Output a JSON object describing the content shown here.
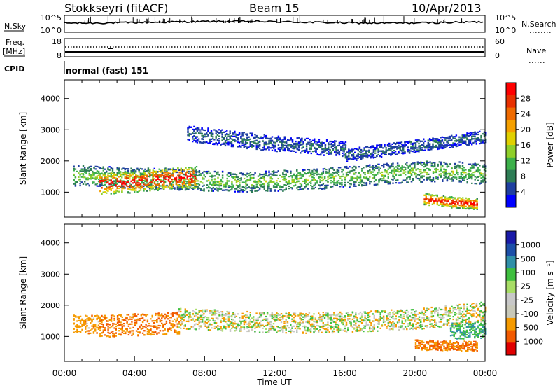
{
  "header": {
    "station": "Stokkseyri (fitACF)",
    "beam": "Beam 15",
    "date": "10/Apr/2013"
  },
  "strips": {
    "nsky_label": "N.Sky",
    "nsearch_label": "N.Search",
    "noise_ticks_left": [
      "10^5",
      "10^0"
    ],
    "noise_ticks_right": [
      "10^5",
      "10^0"
    ],
    "freq_label_1": "Freq.",
    "freq_label_2": "[MHz]",
    "freq_ticks": [
      "18",
      "8"
    ],
    "nave_label": "Nave",
    "nave_ticks": [
      "60",
      "0"
    ],
    "cpid_label": "CPID",
    "cpid_value": "normal (fast) 151"
  },
  "colors": {
    "power_scale": [
      "#0000ff",
      "#1f3fa0",
      "#2e7d55",
      "#3cb04a",
      "#8fcf2a",
      "#e0d000",
      "#f5a000",
      "#ef6a00",
      "#e83000",
      "#ff0000"
    ],
    "velocity_scale": [
      "#e00000",
      "#f25a00",
      "#f59a00",
      "#c8c8b8",
      "#c8c8c8",
      "#a8dd66",
      "#3fbf3f",
      "#2f8fa8",
      "#1c4fa8",
      "#1a1aa8"
    ]
  },
  "chart_data": [
    {
      "type": "heatmap",
      "name": "power",
      "ylabel": "Slant Range [km]",
      "xlabel": "Time UT",
      "x_ticks": [
        "00:00",
        "04:00",
        "08:00",
        "12:00",
        "16:00",
        "20:00",
        "00:00"
      ],
      "xlim_hours": [
        0,
        24
      ],
      "y_ticks": [
        1000,
        2000,
        3000,
        4000
      ],
      "ylim_km": [
        200,
        4600
      ],
      "colorbar_label": "Power [dB]",
      "colorbar_ticks": [
        28,
        24,
        20,
        16,
        12,
        8,
        4
      ],
      "colorbar_range_db": [
        0,
        32
      ],
      "echo_bands": [
        {
          "t_start_h": 0.5,
          "t_end_h": 24,
          "center_km": [
            1550,
            1500,
            1450,
            1400,
            1350,
            1380,
            1450,
            1550,
            1650,
            1700,
            1600
          ],
          "half_width_km": 330,
          "power_db": 12
        },
        {
          "t_start_h": 2.0,
          "t_end_h": 7.5,
          "center_km": [
            1300,
            1350,
            1450,
            1500
          ],
          "half_width_km": 350,
          "power_db": 28
        },
        {
          "t_start_h": 20.5,
          "t_end_h": 23.5,
          "center_km": [
            800,
            700,
            650
          ],
          "half_width_km": 180,
          "power_db": 26
        },
        {
          "t_start_h": 7.0,
          "t_end_h": 16.0,
          "center_km": [
            2900,
            2600,
            2400
          ],
          "half_width_km": 250,
          "power_db": 6
        },
        {
          "t_start_h": 16.0,
          "t_end_h": 24.0,
          "center_km": [
            2200,
            2500,
            2800
          ],
          "half_width_km": 200,
          "power_db": 6
        }
      ]
    },
    {
      "type": "heatmap",
      "name": "velocity",
      "ylabel": "Slant Range [km]",
      "xlabel": "Time UT",
      "x_ticks": [
        "00:00",
        "04:00",
        "08:00",
        "12:00",
        "16:00",
        "20:00",
        "00:00"
      ],
      "xlim_hours": [
        0,
        24
      ],
      "y_ticks": [
        1000,
        2000,
        3000,
        4000
      ],
      "ylim_km": [
        200,
        4600
      ],
      "colorbar_label": "Velocity [m s⁻¹]",
      "colorbar_ticks": [
        "1000",
        "500",
        "100",
        "25",
        "-25",
        "-100",
        "-500",
        "-1000"
      ],
      "echo_bands": [
        {
          "t_start_h": 0.5,
          "t_end_h": 2.0,
          "center_km": [
            1400
          ],
          "half_width_km": 300,
          "velocity_ms": -200
        },
        {
          "t_start_h": 2.0,
          "t_end_h": 6.5,
          "center_km": [
            1350,
            1450
          ],
          "half_width_km": 350,
          "velocity_ms": -300
        },
        {
          "t_start_h": 6.5,
          "t_end_h": 24.0,
          "center_km": [
            1600,
            1500,
            1450,
            1500,
            1600,
            1800
          ],
          "half_width_km": 330,
          "velocity_ms": 0
        },
        {
          "t_start_h": 20.0,
          "t_end_h": 23.5,
          "center_km": [
            750,
            700
          ],
          "half_width_km": 160,
          "velocity_ms": -300
        },
        {
          "t_start_h": 22.0,
          "t_end_h": 24.0,
          "center_km": [
            1200
          ],
          "half_width_km": 250,
          "velocity_ms": 300
        }
      ]
    }
  ]
}
